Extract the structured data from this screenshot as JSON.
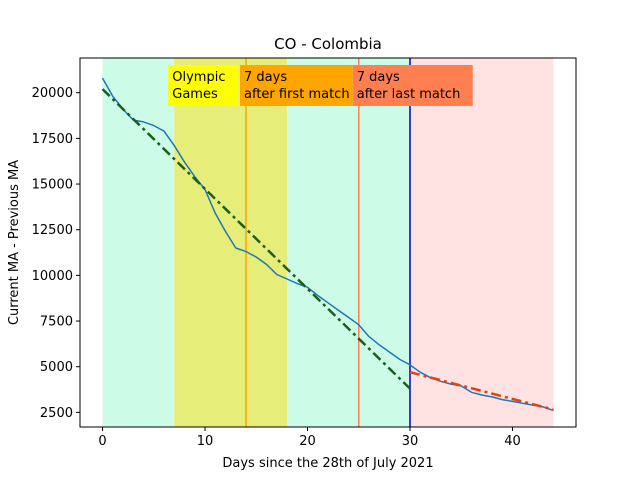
{
  "chart_data": {
    "type": "line",
    "title": "CO - Colombia",
    "xlabel": "Days since the 28th of July 2021",
    "ylabel": "Current MA - Previous MA",
    "xlim": [
      -2.2,
      46.2
    ],
    "ylim": [
      1700,
      21900
    ],
    "xticks": [
      0,
      10,
      20,
      30,
      40
    ],
    "yticks": [
      2500,
      5000,
      7500,
      10000,
      12500,
      15000,
      17500,
      20000
    ],
    "grid": false,
    "regions": [
      {
        "x0": 0,
        "x1": 7,
        "color": "#ccfbe8"
      },
      {
        "x0": 7,
        "x1": 18,
        "color": "#e6ed79"
      },
      {
        "x0": 18,
        "x1": 30,
        "color": "#ccfbe8"
      },
      {
        "x0": 30,
        "x1": 44,
        "color": "#ffe3e3"
      }
    ],
    "vlines": [
      {
        "x": 14,
        "color": "#ffa500"
      },
      {
        "x": 25,
        "color": "#ff7f50"
      },
      {
        "x": 30,
        "color": "#0000cc"
      }
    ],
    "annotations": [
      {
        "lines": [
          "Olympic",
          "Games"
        ],
        "x": 7,
        "color": "#ffff00"
      },
      {
        "lines": [
          "7 days",
          "after first match"
        ],
        "x": 14,
        "color": "#ffa500"
      },
      {
        "lines": [
          "7 days",
          "after last match"
        ],
        "x": 25,
        "color": "#ff7f50"
      }
    ],
    "series": [
      {
        "color": "#1f77b4",
        "style": "solid",
        "x": [
          0,
          1,
          2,
          3,
          4,
          5,
          6,
          7,
          8,
          9,
          10,
          11,
          12,
          13,
          14,
          15,
          16,
          17,
          18,
          19,
          20,
          21,
          22,
          23,
          24,
          25,
          26,
          27,
          28,
          29,
          30,
          31,
          32,
          33,
          34,
          35,
          36,
          37,
          38,
          39,
          40,
          41,
          42,
          43,
          44
        ],
        "y": [
          20800,
          19800,
          19100,
          18500,
          18400,
          18200,
          17900,
          17100,
          16200,
          15400,
          14700,
          13400,
          12400,
          11500,
          11300,
          11000,
          10600,
          10050,
          9800,
          9550,
          9350,
          8900,
          8500,
          8100,
          7700,
          7300,
          6650,
          6200,
          5800,
          5400,
          5100,
          4700,
          4400,
          4200,
          4050,
          3950,
          3600,
          3450,
          3350,
          3200,
          3100,
          3000,
          2900,
          2800,
          2600
        ]
      },
      {
        "color": "#1a5e1a",
        "style": "dashdot",
        "x": [
          0,
          30
        ],
        "y": [
          20200,
          3800
        ]
      },
      {
        "color": "#e0401a",
        "style": "dashdot",
        "x": [
          30,
          44
        ],
        "y": [
          4700,
          2650
        ]
      }
    ]
  }
}
